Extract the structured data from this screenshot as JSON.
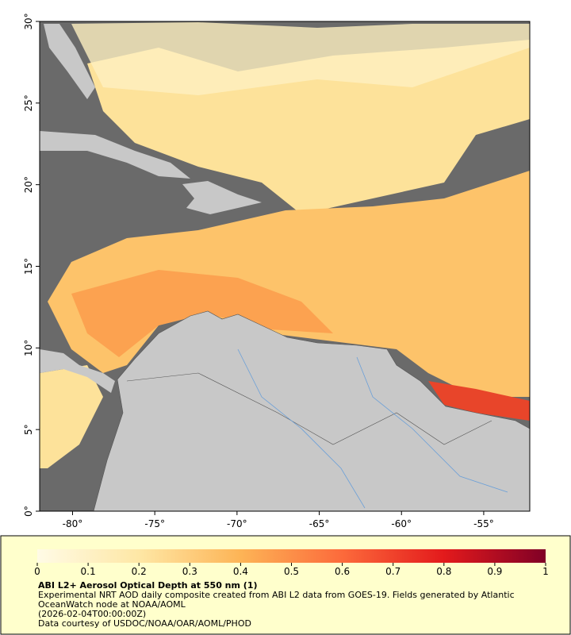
{
  "map": {
    "xlim": [
      -82,
      -52.2
    ],
    "ylim": [
      0,
      30
    ],
    "xticks": [
      {
        "value": -80,
        "label": "-80°"
      },
      {
        "value": -75,
        "label": "-75°"
      },
      {
        "value": -70,
        "label": "-70°"
      },
      {
        "value": -65,
        "label": "-65°"
      },
      {
        "value": -60,
        "label": "-60°"
      },
      {
        "value": -55,
        "label": "-55°"
      }
    ],
    "yticks": [
      {
        "value": 0,
        "label": "0°"
      },
      {
        "value": 5,
        "label": "5°"
      },
      {
        "value": 10,
        "label": "10°"
      },
      {
        "value": 15,
        "label": "15°"
      },
      {
        "value": 20,
        "label": "20°"
      },
      {
        "value": 25,
        "label": "25°"
      },
      {
        "value": 30,
        "label": "30°"
      }
    ]
  },
  "colorbar": {
    "range": [
      0,
      1
    ],
    "ticks": [
      0,
      0.1,
      0.2,
      0.3,
      0.4,
      0.5,
      0.6,
      0.7,
      0.8,
      0.9,
      1
    ]
  },
  "caption": {
    "title": "ABI L2+ Aerosol Optical Depth at 550 nm (1)",
    "lines": [
      "Experimental NRT AOD daily composite created from ABI L2 data from GOES-19. Fields generated by Atlantic",
      "OceanWatch node at NOAA/AOML",
      "(2026-02-04T00:00:00Z)",
      "Data courtesy of USDOC/NOAA/OAR/AOML/PHOD"
    ]
  }
}
